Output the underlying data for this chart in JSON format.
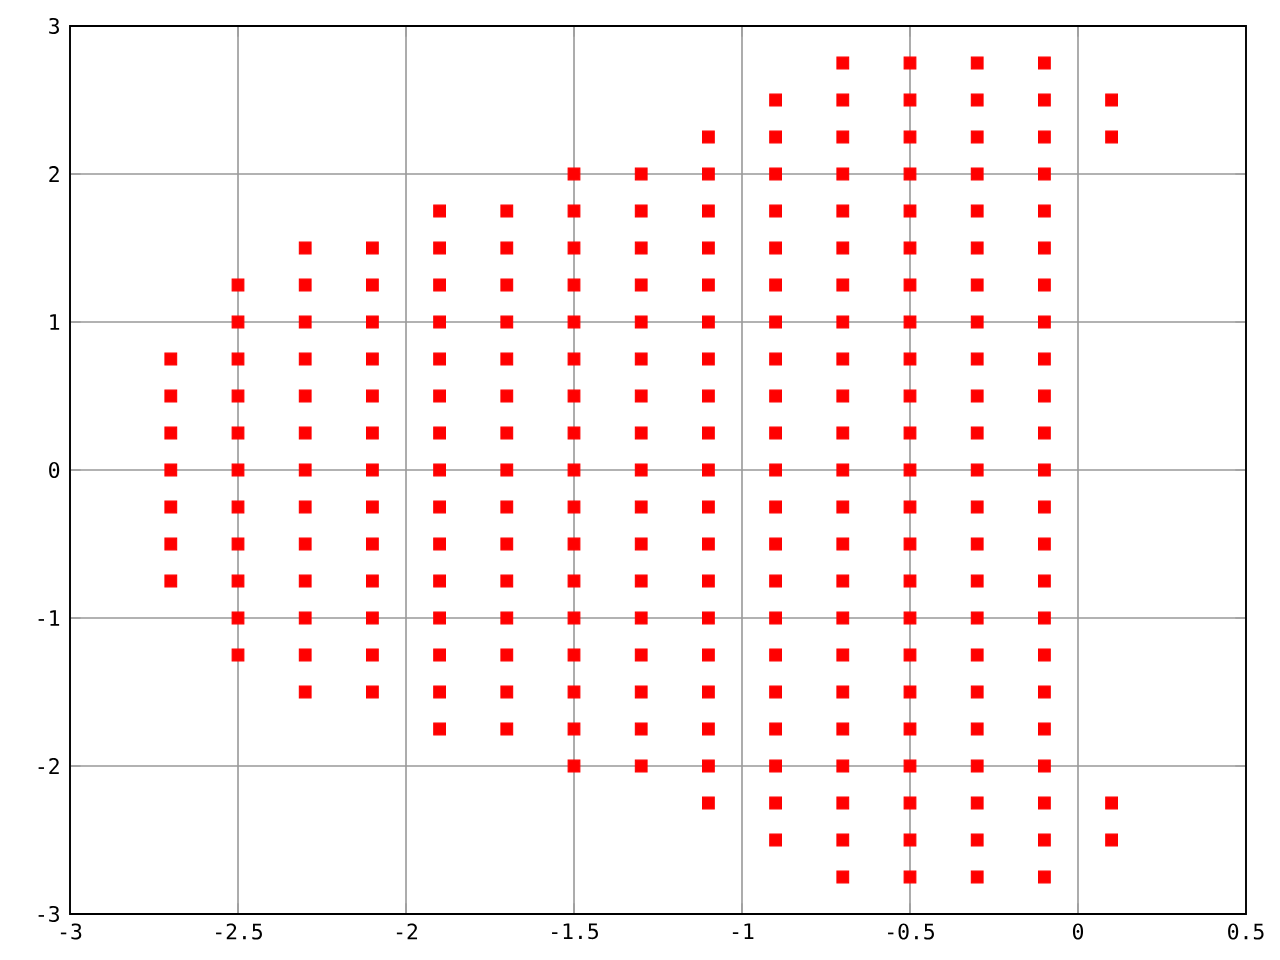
{
  "chart_data": {
    "type": "scatter",
    "color": "#ff0000",
    "marker": "square",
    "grid": true,
    "xlim": [
      -3,
      0.5
    ],
    "ylim": [
      -3,
      3
    ],
    "xticks": [
      -3,
      -2.5,
      -2,
      -1.5,
      -1,
      -0.5,
      0,
      0.5
    ],
    "yticks": [
      -3,
      -2,
      -1,
      0,
      1,
      2,
      3
    ],
    "x": [
      -2.7,
      -2.7,
      -2.7,
      -2.7,
      -2.7,
      -2.7,
      -2.7,
      -2.5,
      -2.5,
      -2.5,
      -2.5,
      -2.5,
      -2.5,
      -2.5,
      -2.5,
      -2.5,
      -2.5,
      -2.5,
      -2.3,
      -2.3,
      -2.3,
      -2.3,
      -2.3,
      -2.3,
      -2.3,
      -2.3,
      -2.3,
      -2.3,
      -2.3,
      -2.3,
      -2.3,
      -2.1,
      -2.1,
      -2.1,
      -2.1,
      -2.1,
      -2.1,
      -2.1,
      -2.1,
      -2.1,
      -2.1,
      -2.1,
      -2.1,
      -2.1,
      -1.9,
      -1.9,
      -1.9,
      -1.9,
      -1.9,
      -1.9,
      -1.9,
      -1.9,
      -1.9,
      -1.9,
      -1.9,
      -1.9,
      -1.9,
      -1.9,
      -1.9,
      -1.7,
      -1.7,
      -1.7,
      -1.7,
      -1.7,
      -1.7,
      -1.7,
      -1.7,
      -1.7,
      -1.7,
      -1.7,
      -1.7,
      -1.7,
      -1.7,
      -1.7,
      -1.5,
      -1.5,
      -1.5,
      -1.5,
      -1.5,
      -1.5,
      -1.5,
      -1.5,
      -1.5,
      -1.5,
      -1.5,
      -1.5,
      -1.5,
      -1.5,
      -1.5,
      -1.5,
      -1.5,
      -1.3,
      -1.3,
      -1.3,
      -1.3,
      -1.3,
      -1.3,
      -1.3,
      -1.3,
      -1.3,
      -1.3,
      -1.3,
      -1.3,
      -1.3,
      -1.3,
      -1.3,
      -1.3,
      -1.3,
      -1.1,
      -1.1,
      -1.1,
      -1.1,
      -1.1,
      -1.1,
      -1.1,
      -1.1,
      -1.1,
      -1.1,
      -1.1,
      -1.1,
      -1.1,
      -1.1,
      -1.1,
      -1.1,
      -1.1,
      -1.1,
      -1.1,
      -0.9,
      -0.9,
      -0.9,
      -0.9,
      -0.9,
      -0.9,
      -0.9,
      -0.9,
      -0.9,
      -0.9,
      -0.9,
      -0.9,
      -0.9,
      -0.9,
      -0.9,
      -0.9,
      -0.9,
      -0.9,
      -0.9,
      -0.9,
      -0.9,
      -0.7,
      -0.7,
      -0.7,
      -0.7,
      -0.7,
      -0.7,
      -0.7,
      -0.7,
      -0.7,
      -0.7,
      -0.7,
      -0.7,
      -0.7,
      -0.7,
      -0.7,
      -0.7,
      -0.7,
      -0.7,
      -0.7,
      -0.7,
      -0.7,
      -0.7,
      -0.7,
      -0.5,
      -0.5,
      -0.5,
      -0.5,
      -0.5,
      -0.5,
      -0.5,
      -0.5,
      -0.5,
      -0.5,
      -0.5,
      -0.5,
      -0.5,
      -0.5,
      -0.5,
      -0.5,
      -0.5,
      -0.5,
      -0.5,
      -0.5,
      -0.5,
      -0.5,
      -0.5,
      -0.3,
      -0.3,
      -0.3,
      -0.3,
      -0.3,
      -0.3,
      -0.3,
      -0.3,
      -0.3,
      -0.3,
      -0.3,
      -0.3,
      -0.3,
      -0.3,
      -0.3,
      -0.3,
      -0.3,
      -0.3,
      -0.3,
      -0.3,
      -0.3,
      -0.3,
      -0.3,
      -0.1,
      -0.1,
      -0.1,
      -0.1,
      -0.1,
      -0.1,
      -0.1,
      -0.1,
      -0.1,
      -0.1,
      -0.1,
      -0.1,
      -0.1,
      -0.1,
      -0.1,
      -0.1,
      -0.1,
      -0.1,
      -0.1,
      -0.1,
      -0.1,
      -0.1,
      -0.1,
      0.1,
      0.1,
      0.1,
      0.1
    ],
    "values": [
      -0.75,
      -0.5,
      -0.25,
      0,
      0.25,
      0.5,
      0.75,
      -1.25,
      -1,
      -0.75,
      -0.5,
      -0.25,
      0,
      0.25,
      0.5,
      0.75,
      1,
      1.25,
      -1.5,
      -1.25,
      -1,
      -0.75,
      -0.5,
      -0.25,
      0,
      0.25,
      0.5,
      0.75,
      1,
      1.25,
      1.5,
      -1.5,
      -1.25,
      -1,
      -0.75,
      -0.5,
      -0.25,
      0,
      0.25,
      0.5,
      0.75,
      1,
      1.25,
      1.5,
      -1.75,
      -1.5,
      -1.25,
      -1,
      -0.75,
      -0.5,
      -0.25,
      0,
      0.25,
      0.5,
      0.75,
      1,
      1.25,
      1.5,
      1.75,
      -1.75,
      -1.5,
      -1.25,
      -1,
      -0.75,
      -0.5,
      -0.25,
      0,
      0.25,
      0.5,
      0.75,
      1,
      1.25,
      1.5,
      1.75,
      -2,
      -1.75,
      -1.5,
      -1.25,
      -1,
      -0.75,
      -0.5,
      -0.25,
      0,
      0.25,
      0.5,
      0.75,
      1,
      1.25,
      1.5,
      1.75,
      2,
      -2,
      -1.75,
      -1.5,
      -1.25,
      -1,
      -0.75,
      -0.5,
      -0.25,
      0,
      0.25,
      0.5,
      0.75,
      1,
      1.25,
      1.5,
      1.75,
      2,
      -2.25,
      -2,
      -1.75,
      -1.5,
      -1.25,
      -1,
      -0.75,
      -0.5,
      -0.25,
      0,
      0.25,
      0.5,
      0.75,
      1,
      1.25,
      1.5,
      1.75,
      2,
      2.25,
      -2.5,
      -2.25,
      -2,
      -1.75,
      -1.5,
      -1.25,
      -1,
      -0.75,
      -0.5,
      -0.25,
      0,
      0.25,
      0.5,
      0.75,
      1,
      1.25,
      1.5,
      1.75,
      2,
      2.25,
      2.5,
      -2.75,
      -2.5,
      -2.25,
      -2,
      -1.75,
      -1.5,
      -1.25,
      -1,
      -0.75,
      -0.5,
      -0.25,
      0,
      0.25,
      0.5,
      0.75,
      1,
      1.25,
      1.5,
      1.75,
      2,
      2.25,
      2.5,
      2.75,
      -2.75,
      -2.5,
      -2.25,
      -2,
      -1.75,
      -1.5,
      -1.25,
      -1,
      -0.75,
      -0.5,
      -0.25,
      0,
      0.25,
      0.5,
      0.75,
      1,
      1.25,
      1.5,
      1.75,
      2,
      2.25,
      2.5,
      2.75,
      -2.75,
      -2.5,
      -2.25,
      -2,
      -1.75,
      -1.5,
      -1.25,
      -1,
      -0.75,
      -0.5,
      -0.25,
      0,
      0.25,
      0.5,
      0.75,
      1,
      1.25,
      1.5,
      1.75,
      2,
      2.25,
      2.5,
      2.75,
      -2.75,
      -2.5,
      -2.25,
      -2,
      -1.75,
      -1.5,
      -1.25,
      -1,
      -0.75,
      -0.5,
      -0.25,
      0,
      0.25,
      0.5,
      0.75,
      1,
      1.25,
      1.5,
      1.75,
      2,
      2.25,
      2.5,
      2.75,
      -2.5,
      -2.25,
      2.25,
      2.5
    ]
  }
}
